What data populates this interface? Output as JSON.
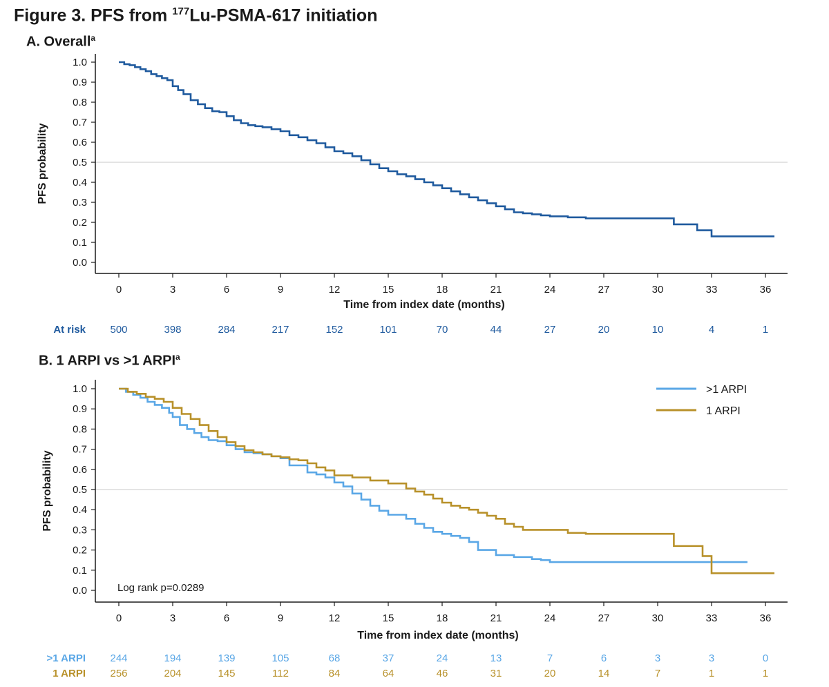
{
  "figure": {
    "title_main": "Figure 3. PFS from ",
    "title_sup": "177",
    "title_rest": "Lu-PSMA-617 initiation"
  },
  "colors": {
    "overall": "#1f5a9e",
    "gt1": "#5aa7e6",
    "one": "#b8912a",
    "axis": "#1a1a1a",
    "refline": "#c8c8c8"
  },
  "chart_data": [
    {
      "type": "line",
      "panel_title": "A. Overall",
      "panel_title_sup": "a",
      "xlabel": "Time from index date (months)",
      "ylabel": "PFS probability",
      "xlim": [
        0,
        36.5
      ],
      "ylim": [
        0,
        1.0
      ],
      "xticks": [
        "0",
        "3",
        "6",
        "9",
        "12",
        "15",
        "18",
        "21",
        "24",
        "27",
        "30",
        "33",
        "36"
      ],
      "yticks": [
        "0.0",
        "0.1",
        "0.2",
        "0.3",
        "0.4",
        "0.5",
        "0.6",
        "0.7",
        "0.8",
        "0.9",
        "1.0"
      ],
      "reference_line_y": 0.5,
      "series": [
        {
          "color": "#1f5a9e",
          "x": [
            0,
            0.3,
            0.6,
            0.9,
            1.2,
            1.5,
            1.8,
            2.1,
            2.4,
            2.7,
            3.0,
            3.3,
            3.6,
            4.0,
            4.4,
            4.8,
            5.2,
            5.6,
            6.0,
            6.4,
            6.8,
            7.2,
            7.6,
            8.0,
            8.5,
            9.0,
            9.5,
            10.0,
            10.5,
            11.0,
            11.5,
            12.0,
            12.5,
            13.0,
            13.5,
            14.0,
            14.5,
            15.0,
            15.5,
            16.0,
            16.5,
            17.0,
            17.5,
            18.0,
            18.5,
            19.0,
            19.5,
            20.0,
            20.5,
            21.0,
            21.5,
            22.0,
            22.5,
            23.0,
            23.5,
            24.0,
            25.0,
            26.0,
            27.0,
            28.0,
            29.0,
            30.0,
            30.9,
            31.5,
            32.2,
            32.5,
            33.0,
            34.0,
            35.0,
            36.0,
            36.5
          ],
          "y": [
            1.0,
            0.99,
            0.985,
            0.975,
            0.965,
            0.955,
            0.94,
            0.93,
            0.92,
            0.91,
            0.88,
            0.86,
            0.84,
            0.81,
            0.79,
            0.77,
            0.755,
            0.75,
            0.73,
            0.71,
            0.695,
            0.685,
            0.68,
            0.675,
            0.665,
            0.655,
            0.635,
            0.625,
            0.61,
            0.595,
            0.575,
            0.555,
            0.545,
            0.53,
            0.51,
            0.49,
            0.47,
            0.455,
            0.44,
            0.43,
            0.415,
            0.4,
            0.385,
            0.37,
            0.355,
            0.34,
            0.325,
            0.31,
            0.295,
            0.28,
            0.265,
            0.25,
            0.245,
            0.24,
            0.235,
            0.23,
            0.225,
            0.22,
            0.22,
            0.22,
            0.22,
            0.22,
            0.19,
            0.19,
            0.16,
            0.16,
            0.13,
            0.13,
            0.13,
            0.13,
            0.13
          ]
        }
      ],
      "at_risk": {
        "rows": [
          {
            "label": "At risk",
            "color": "#1f5a9e",
            "values": [
              "500",
              "398",
              "284",
              "217",
              "152",
              "101",
              "70",
              "44",
              "27",
              "20",
              "10",
              "4",
              "1"
            ]
          }
        ]
      }
    },
    {
      "type": "line",
      "panel_title": "B. 1 ARPI vs >1 ARPI",
      "panel_title_sup": "a",
      "xlabel": "Time from index date (months)",
      "ylabel": "PFS probability",
      "xlim": [
        0,
        36.5
      ],
      "ylim": [
        0,
        1.0
      ],
      "xticks": [
        "0",
        "3",
        "6",
        "9",
        "12",
        "15",
        "18",
        "21",
        "24",
        "27",
        "30",
        "33",
        "36"
      ],
      "yticks": [
        "0.0",
        "0.1",
        "0.2",
        "0.3",
        "0.4",
        "0.5",
        "0.6",
        "0.7",
        "0.8",
        "0.9",
        "1.0"
      ],
      "reference_line_y": 0.5,
      "annotation": "Log rank p=0.0289",
      "legend_position": "top-right",
      "series": [
        {
          "name": ">1 ARPI",
          "color": "#5aa7e6",
          "x": [
            0,
            0.4,
            0.8,
            1.2,
            1.6,
            2.0,
            2.4,
            2.8,
            3.0,
            3.4,
            3.8,
            4.2,
            4.6,
            5.0,
            5.5,
            6.0,
            6.5,
            7.0,
            7.5,
            8.0,
            8.5,
            9.0,
            9.5,
            10.0,
            10.5,
            11.0,
            11.5,
            12.0,
            12.5,
            13.0,
            13.5,
            14.0,
            14.5,
            15.0,
            15.5,
            16.0,
            16.5,
            17.0,
            17.5,
            18.0,
            18.5,
            19.0,
            19.5,
            20.0,
            20.5,
            21.0,
            22.0,
            22.5,
            23.0,
            23.5,
            24.0,
            25.0,
            27.0,
            30.0,
            33.0,
            35.0
          ],
          "y": [
            1.0,
            0.985,
            0.97,
            0.955,
            0.935,
            0.92,
            0.905,
            0.88,
            0.86,
            0.82,
            0.8,
            0.78,
            0.76,
            0.745,
            0.74,
            0.72,
            0.7,
            0.685,
            0.68,
            0.675,
            0.665,
            0.655,
            0.62,
            0.62,
            0.585,
            0.575,
            0.56,
            0.535,
            0.515,
            0.48,
            0.45,
            0.42,
            0.395,
            0.375,
            0.375,
            0.355,
            0.33,
            0.31,
            0.29,
            0.28,
            0.27,
            0.26,
            0.24,
            0.2,
            0.2,
            0.175,
            0.165,
            0.165,
            0.155,
            0.15,
            0.14,
            0.14,
            0.14,
            0.14,
            0.14,
            0.14
          ]
        },
        {
          "name": "1 ARPI",
          "color": "#b8912a",
          "x": [
            0,
            0.5,
            1.0,
            1.5,
            2.0,
            2.5,
            3.0,
            3.5,
            4.0,
            4.5,
            5.0,
            5.5,
            6.0,
            6.5,
            7.0,
            7.5,
            8.0,
            8.5,
            9.0,
            9.5,
            10.0,
            10.5,
            11.0,
            11.5,
            12.0,
            13.0,
            14.0,
            15.0,
            16.0,
            16.5,
            17.0,
            17.5,
            18.0,
            18.5,
            19.0,
            19.5,
            20.0,
            20.5,
            21.0,
            21.5,
            22.0,
            22.5,
            23.0,
            24.0,
            25.0,
            26.0,
            27.0,
            29.0,
            30.9,
            32.0,
            32.5,
            33.0,
            34.0,
            35.0,
            36.5
          ],
          "y": [
            1.0,
            0.985,
            0.975,
            0.96,
            0.95,
            0.935,
            0.905,
            0.875,
            0.85,
            0.82,
            0.79,
            0.76,
            0.735,
            0.715,
            0.695,
            0.685,
            0.675,
            0.665,
            0.66,
            0.65,
            0.645,
            0.63,
            0.61,
            0.595,
            0.57,
            0.56,
            0.545,
            0.53,
            0.505,
            0.49,
            0.475,
            0.455,
            0.435,
            0.42,
            0.41,
            0.4,
            0.385,
            0.37,
            0.355,
            0.33,
            0.315,
            0.3,
            0.3,
            0.3,
            0.285,
            0.28,
            0.28,
            0.28,
            0.22,
            0.22,
            0.17,
            0.085,
            0.085,
            0.085,
            0.085
          ]
        }
      ],
      "at_risk": {
        "rows": [
          {
            "label": ">1 ARPI",
            "color": "#5aa7e6",
            "values": [
              "244",
              "194",
              "139",
              "105",
              "68",
              "37",
              "24",
              "13",
              "7",
              "6",
              "3",
              "3",
              "0"
            ]
          },
          {
            "label": "1 ARPI",
            "color": "#b8912a",
            "values": [
              "256",
              "204",
              "145",
              "112",
              "84",
              "64",
              "46",
              "31",
              "20",
              "14",
              "7",
              "1",
              "1"
            ]
          }
        ]
      }
    }
  ]
}
